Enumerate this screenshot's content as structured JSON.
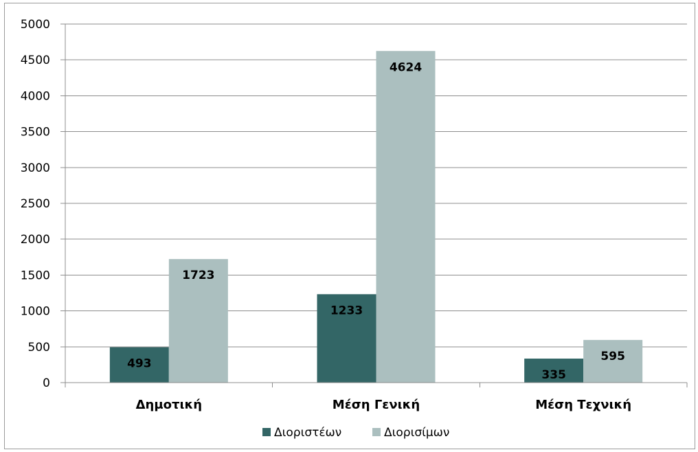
{
  "chart_data": {
    "type": "bar",
    "categories": [
      "Δημοτική",
      "Μέση Γενική",
      "Μέση Τεχνική"
    ],
    "series": [
      {
        "name": "Διοριστέων",
        "values": [
          493,
          1233,
          335
        ],
        "color": "#336666"
      },
      {
        "name": "Διορισίμων",
        "values": [
          1723,
          4624,
          595
        ],
        "color": "#abbfbf"
      }
    ],
    "ylim": [
      0,
      5000
    ],
    "yticks": [
      0,
      500,
      1000,
      1500,
      2000,
      2500,
      3000,
      3500,
      4000,
      4500,
      5000
    ],
    "grid": true,
    "legend_position": "bottom",
    "data_labels": true
  }
}
